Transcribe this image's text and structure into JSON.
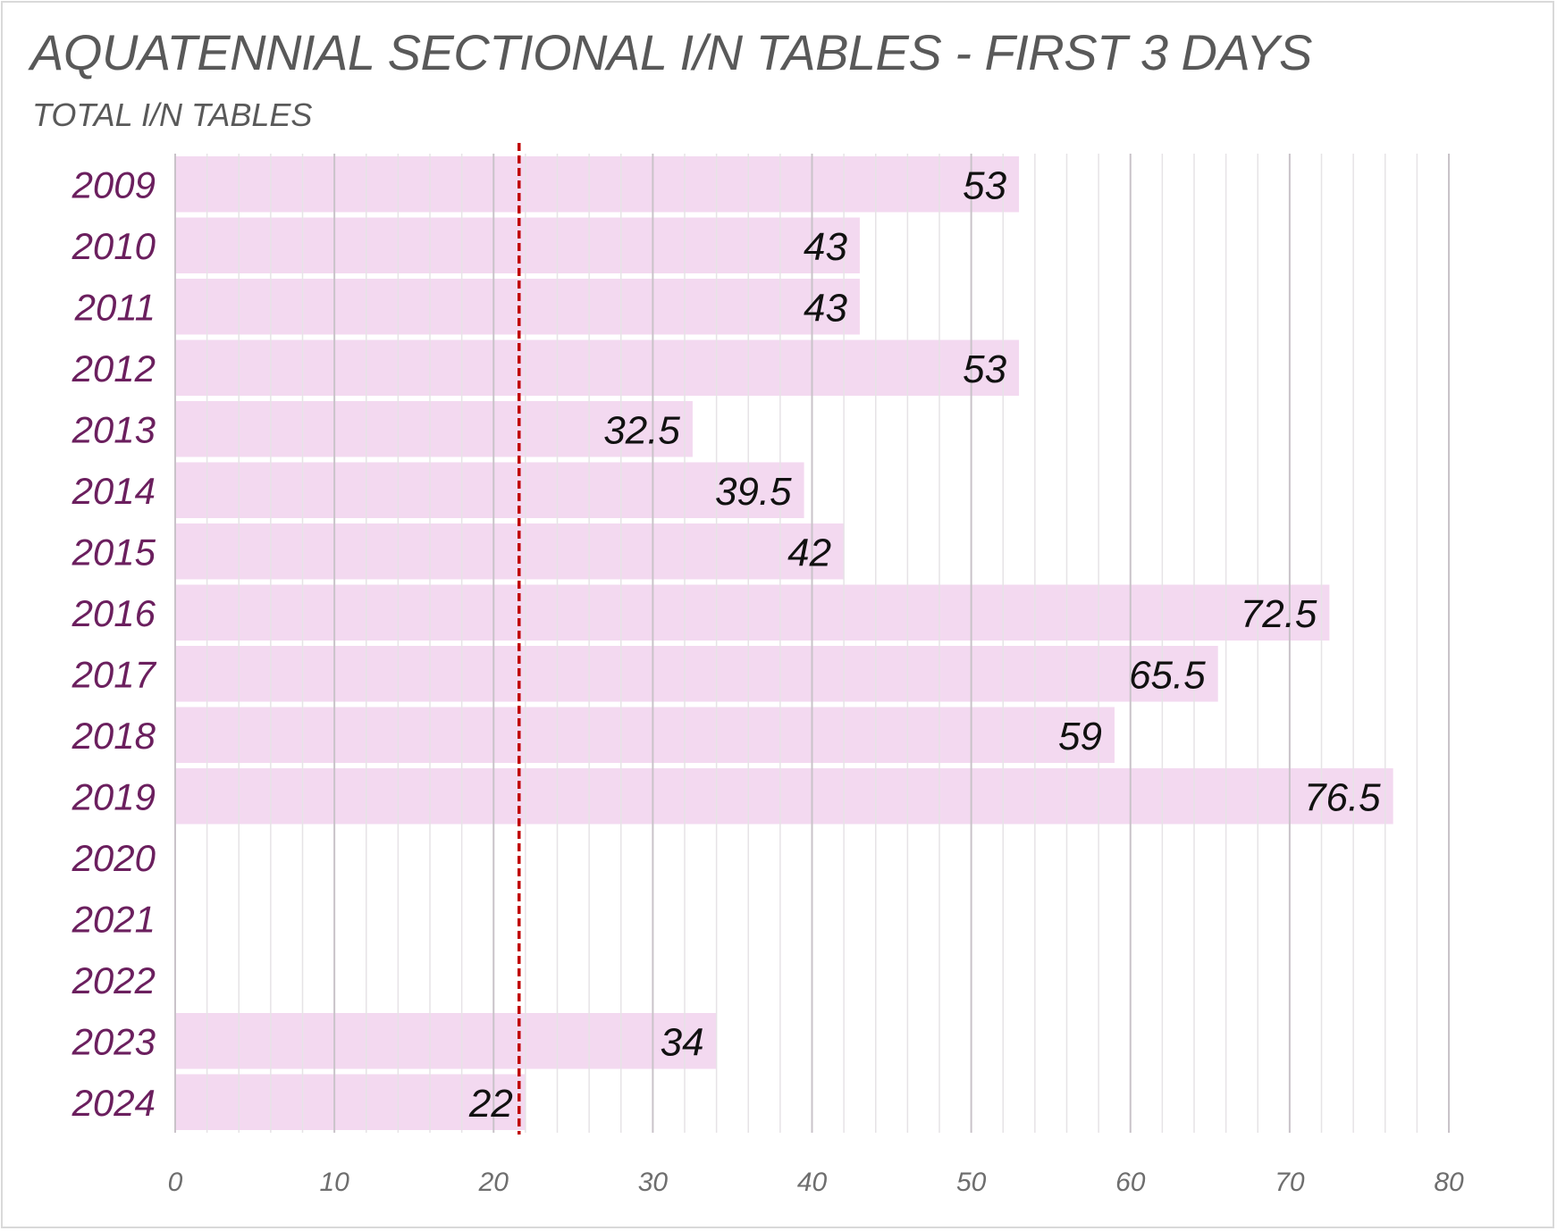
{
  "chart_data": {
    "type": "bar",
    "orientation": "horizontal",
    "title": "AQUATENNIAL SECTIONAL I/N TABLES - FIRST 3 DAYS",
    "subtitle": "TOTAL I/N TABLES",
    "categories": [
      "2009",
      "2010",
      "2011",
      "2012",
      "2013",
      "2014",
      "2015",
      "2016",
      "2017",
      "2018",
      "2019",
      "2020",
      "2021",
      "2022",
      "2023",
      "2024"
    ],
    "values": [
      53,
      43,
      43,
      53,
      32.5,
      39.5,
      42,
      72.5,
      65.5,
      59,
      76.5,
      null,
      null,
      null,
      34,
      22
    ],
    "data_labels": [
      "53",
      "43",
      "43",
      "53",
      "32.5",
      "39.5",
      "42",
      "72.5",
      "65.5",
      "59",
      "76.5",
      "",
      "",
      "",
      "34",
      "22"
    ],
    "xlim": [
      0,
      80
    ],
    "xticks": [
      "0",
      "10",
      "20",
      "30",
      "40",
      "50",
      "60",
      "70",
      "80"
    ],
    "reference_line": {
      "value": 21.6,
      "style": "dashed",
      "color": "#c00000"
    },
    "grid": true,
    "bar_color": "#f3d9f0",
    "category_color": "#6b1f5e"
  }
}
